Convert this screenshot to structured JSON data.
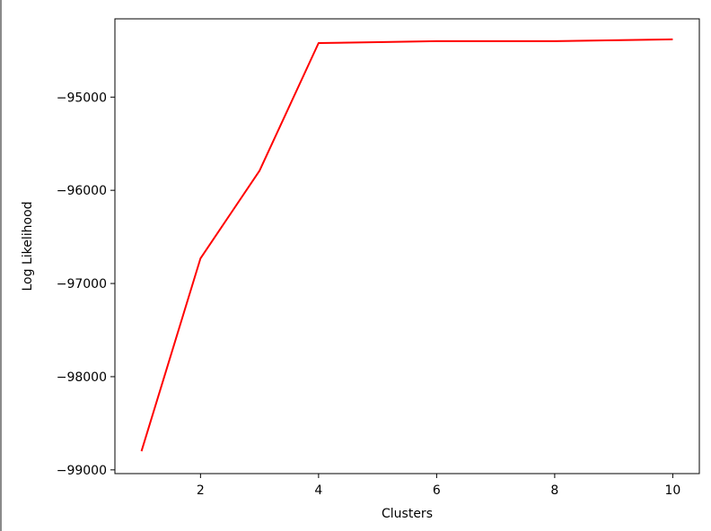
{
  "chart_data": {
    "type": "line",
    "title": "",
    "xlabel": "Clusters",
    "ylabel": "Log Likelihood",
    "x": [
      1,
      2,
      3,
      4,
      5,
      6,
      7,
      8,
      9,
      10
    ],
    "series": [
      {
        "color": "#ff0000",
        "values": [
          -98800,
          -96730,
          -95790,
          -94420,
          -94410,
          -94400,
          -94400,
          -94400,
          -94390,
          -94380
        ]
      }
    ],
    "xlim": [
      0.55,
      10.45
    ],
    "ylim": [
      -99040,
      -94160
    ],
    "xticks": [
      2,
      4,
      6,
      8,
      10
    ],
    "yticks": [
      -99000,
      -98000,
      -97000,
      -96000,
      -95000
    ],
    "xtick_labels": [
      "2",
      "4",
      "6",
      "8",
      "10"
    ],
    "ytick_labels": [
      "−99000",
      "−98000",
      "−97000",
      "−96000",
      "−95000"
    ],
    "grid": false,
    "legend": "none"
  }
}
